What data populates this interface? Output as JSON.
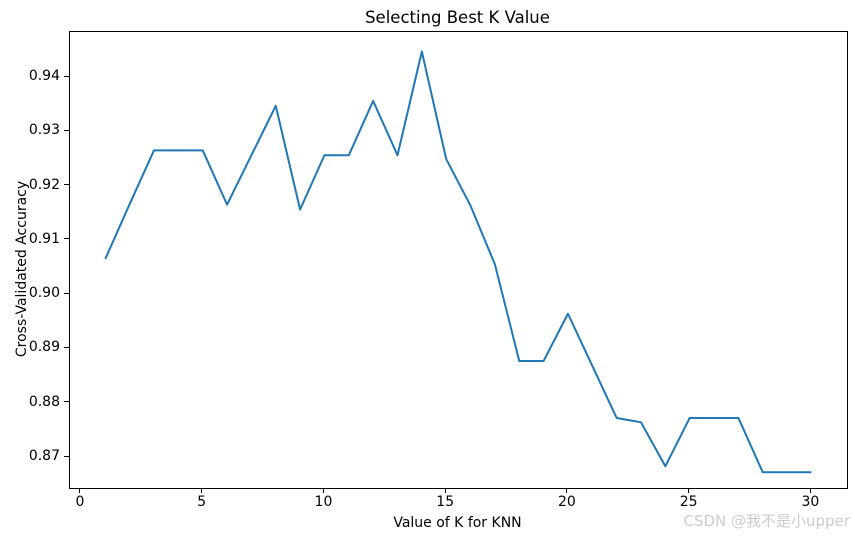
{
  "figure": {
    "title": "Selecting Best K Value"
  },
  "watermark": {
    "text": "CSDN @我不是小upper",
    "color": "#cccccc"
  },
  "chart_data": {
    "type": "line",
    "title": "Selecting Best K Value",
    "xlabel": "Value of K for KNN",
    "ylabel": "Cross-Validated Accuracy",
    "x": [
      1,
      2,
      3,
      4,
      5,
      6,
      7,
      8,
      9,
      10,
      11,
      12,
      13,
      14,
      15,
      16,
      17,
      18,
      19,
      20,
      21,
      22,
      23,
      24,
      25,
      26,
      27,
      28,
      29,
      30
    ],
    "values": [
      0.9065,
      0.9166,
      0.9265,
      0.9265,
      0.9265,
      0.9165,
      0.9256,
      0.9347,
      0.9156,
      0.9256,
      0.9256,
      0.9356,
      0.9256,
      0.9447,
      0.9249,
      0.9163,
      0.9055,
      0.8877,
      0.8877,
      0.8964,
      0.8868,
      0.8772,
      0.8764,
      0.8683,
      0.8772,
      0.8772,
      0.8772,
      0.8672,
      0.8672,
      0.8672
    ],
    "xlim": [
      -0.45,
      31.46
    ],
    "ylim": [
      0.8643,
      0.9483
    ],
    "x_ticks": [
      0,
      5,
      10,
      15,
      20,
      25,
      30
    ],
    "y_ticks": [
      0.87,
      0.88,
      0.89,
      0.9,
      0.91,
      0.92,
      0.93,
      0.94
    ],
    "line_color": "#1f77b4",
    "line_width": 2,
    "grid": false,
    "legend": null
  }
}
